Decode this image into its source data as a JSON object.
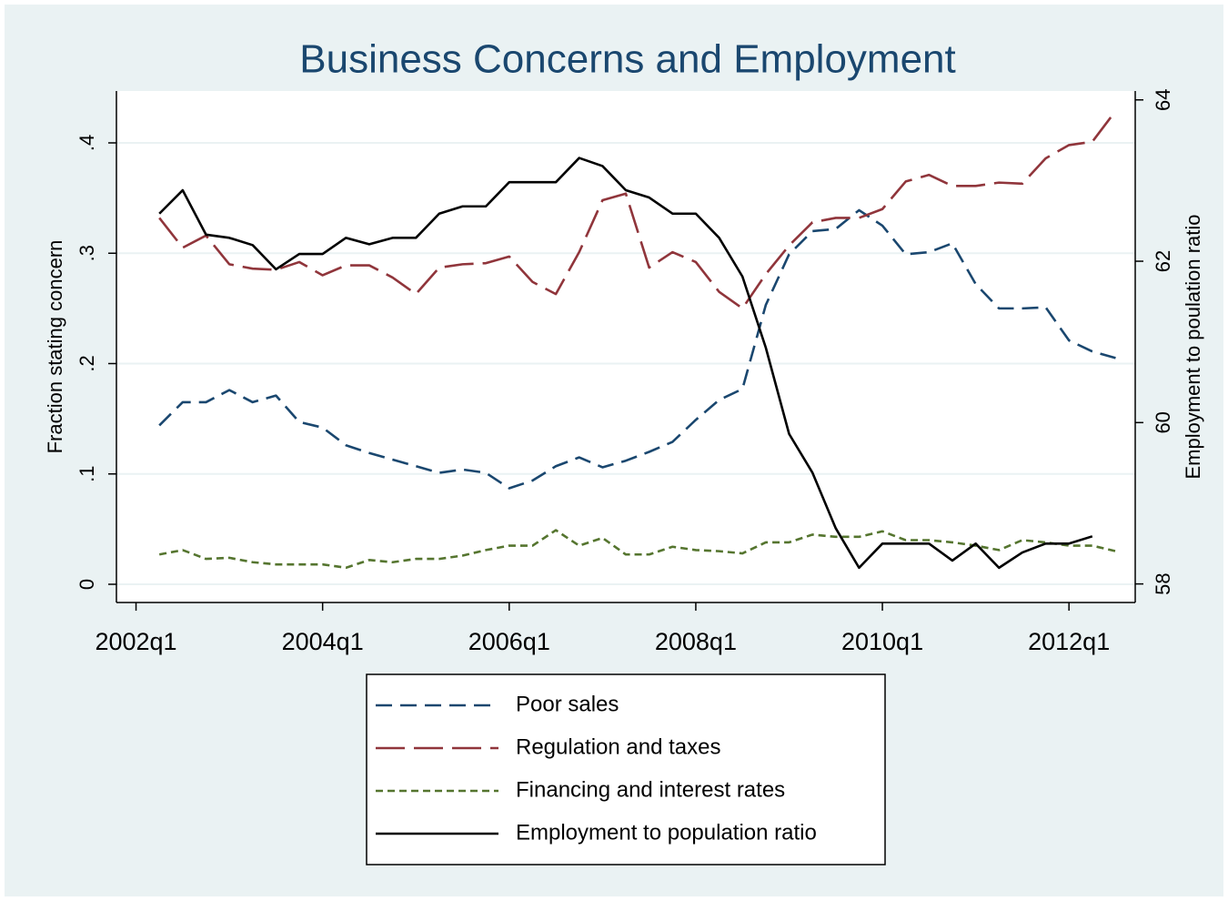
{
  "chart_data": {
    "type": "line",
    "title": "Business Concerns and Employment",
    "y_label": "Fraction stating concern",
    "y2_label": "Employment to poulation ratio",
    "x": [
      2002.25,
      2002.5,
      2002.75,
      2003,
      2003.25,
      2003.5,
      2003.75,
      2004,
      2004.25,
      2004.5,
      2004.75,
      2005,
      2005.25,
      2005.5,
      2005.75,
      2006,
      2006.25,
      2006.5,
      2006.75,
      2007,
      2007.25,
      2007.5,
      2007.75,
      2008,
      2008.25,
      2008.5,
      2008.75,
      2009,
      2009.25,
      2009.5,
      2009.75,
      2010,
      2010.25,
      2010.5,
      2010.75,
      2011,
      2011.25,
      2011.5,
      2011.75,
      2012,
      2012.25,
      2012.5
    ],
    "xlim": [
      2001.79,
      2012.71
    ],
    "xticks": [
      {
        "value": 2002,
        "label": "2002q1"
      },
      {
        "value": 2004,
        "label": "2004q1"
      },
      {
        "value": 2006,
        "label": "2006q1"
      },
      {
        "value": 2008,
        "label": "2008q1"
      },
      {
        "value": 2010,
        "label": "2010q1"
      },
      {
        "value": 2012,
        "label": "2012q1"
      }
    ],
    "ylim": [
      -0.0165,
      0.447
    ],
    "yticks": [
      0,
      {
        "value": 0.1,
        "label": ".1"
      },
      {
        "value": 0.2,
        "label": ".2"
      },
      {
        "value": 0.3,
        "label": ".3"
      },
      {
        "value": 0.4,
        "label": ".4"
      }
    ],
    "y2lim": [
      57.77,
      64.11
    ],
    "y2ticks": [
      58,
      60,
      62,
      64
    ],
    "grid": true,
    "legend": "bottom",
    "series": [
      {
        "name": "Poor sales",
        "color": "#1a476f",
        "dash": "18,9",
        "axis": "y",
        "values": [
          0.144,
          0.165,
          0.165,
          0.176,
          0.165,
          0.171,
          0.147,
          0.142,
          0.126,
          0.119,
          0.113,
          0.107,
          0.101,
          0.104,
          0.101,
          0.087,
          0.094,
          0.107,
          0.115,
          0.106,
          0.112,
          0.12,
          0.129,
          0.149,
          0.167,
          0.177,
          0.253,
          0.299,
          0.32,
          0.322,
          0.339,
          0.325,
          0.299,
          0.301,
          0.309,
          0.272,
          0.25,
          0.25,
          0.251,
          0.221,
          0.211,
          0.205
        ]
      },
      {
        "name": "Regulation and taxes",
        "color": "#90353b",
        "dash": "32,10",
        "axis": "y",
        "values": [
          0.332,
          0.305,
          0.316,
          0.29,
          0.286,
          0.285,
          0.292,
          0.28,
          0.289,
          0.289,
          0.278,
          0.263,
          0.287,
          0.29,
          0.291,
          0.297,
          0.274,
          0.263,
          0.301,
          0.348,
          0.354,
          0.287,
          0.301,
          0.292,
          0.265,
          0.25,
          0.281,
          0.307,
          0.328,
          0.332,
          0.332,
          0.34,
          0.365,
          0.371,
          0.361,
          0.361,
          0.364,
          0.363,
          0.386,
          0.398,
          0.401,
          0.429
        ]
      },
      {
        "name": "Financing and interest rates",
        "color": "#55752f",
        "dash": "8,5",
        "axis": "y",
        "values": [
          0.027,
          0.031,
          0.023,
          0.024,
          0.02,
          0.018,
          0.018,
          0.018,
          0.015,
          0.022,
          0.02,
          0.023,
          0.023,
          0.026,
          0.031,
          0.035,
          0.035,
          0.049,
          0.035,
          0.042,
          0.027,
          0.027,
          0.034,
          0.031,
          0.03,
          0.028,
          0.038,
          0.038,
          0.045,
          0.043,
          0.043,
          0.048,
          0.04,
          0.04,
          0.038,
          0.035,
          0.031,
          0.04,
          0.038,
          0.035,
          0.035,
          0.03
        ]
      },
      {
        "name": "Employment to population ratio",
        "color": "#000000",
        "dash": "none",
        "axis": "y2",
        "values": [
          62.59,
          62.88,
          62.33,
          62.29,
          62.2,
          61.9,
          62.09,
          62.09,
          62.29,
          62.21,
          62.29,
          62.29,
          62.59,
          62.68,
          62.68,
          62.98,
          62.98,
          62.98,
          63.28,
          63.18,
          62.88,
          62.79,
          62.59,
          62.59,
          62.29,
          61.81,
          60.93,
          59.86,
          59.38,
          58.69,
          58.2,
          58.5,
          58.5,
          58.5,
          58.29,
          58.5,
          58.2,
          58.39,
          58.5,
          58.5,
          58.59,
          null
        ]
      }
    ]
  }
}
